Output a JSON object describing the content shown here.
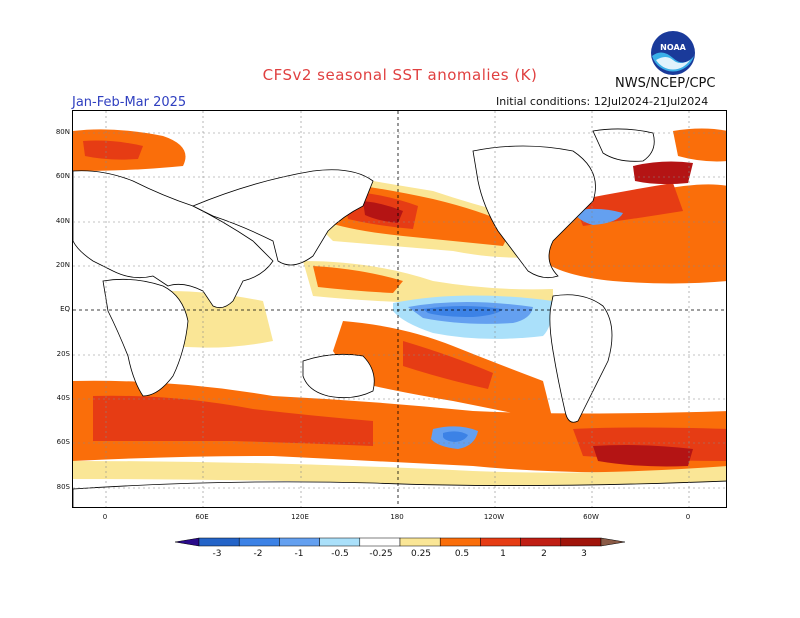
{
  "header": {
    "title": "CFSv2 seasonal SST anomalies (K)",
    "agency": "NWS/NCEP/CPC",
    "season": "Jan-Feb-Mar 2025",
    "initial_conditions": "Initial conditions: 12Jul2024-21Jul2024",
    "logo_text": "NOAA"
  },
  "axes": {
    "lat_labels": [
      "80N",
      "60N",
      "40N",
      "20N",
      "EQ",
      "20S",
      "40S",
      "60S",
      "80S"
    ],
    "lon_labels": [
      "0",
      "60E",
      "120E",
      "180",
      "120W",
      "60W",
      "0"
    ]
  },
  "colorbar": {
    "labels": [
      "-3",
      "-2",
      "-1",
      "-0.5",
      "-0.25",
      "0.25",
      "0.5",
      "1",
      "2",
      "3"
    ],
    "colors": [
      "#2a0a8a",
      "#2464c8",
      "#3c82e6",
      "#64a0f0",
      "#aae0fa",
      "#ffffff",
      "#fae696",
      "#fa6e0a",
      "#e63c14",
      "#c01e14",
      "#a0140a",
      "#8a5a46"
    ]
  },
  "palette": {
    "ocean_neutral": "#ffffff",
    "warm_light": "#fae696",
    "warm_orange": "#fa6e0a",
    "warm_red": "#e63c14",
    "warm_dark": "#b41414",
    "cool_light": "#aae0fa",
    "cool_mid": "#64a0f0",
    "cool_dark": "#3c82e6",
    "land": "#ffffff"
  }
}
